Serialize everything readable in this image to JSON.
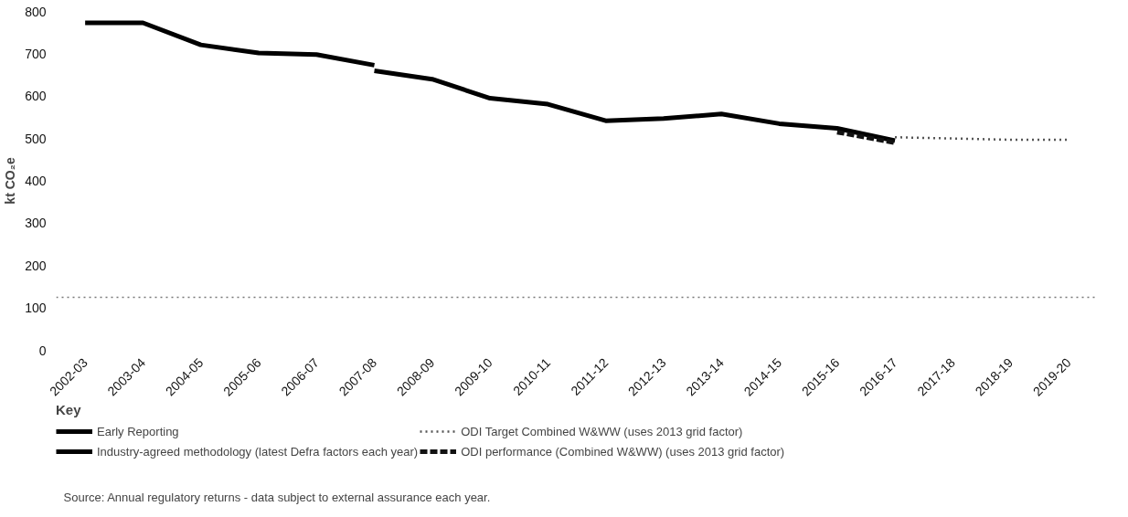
{
  "chart_data": {
    "type": "line",
    "ylabel": "kt CO₂e",
    "legend_title": "Key",
    "categories": [
      "2002-03",
      "2003-04",
      "2004-05",
      "2005-06",
      "2006-07",
      "2007-08",
      "2008-09",
      "2009-10",
      "2010-11",
      "2011-12",
      "2012-13",
      "2013-14",
      "2014-15",
      "2015-16",
      "2016-17",
      "2017-18",
      "2018-19",
      "2019-20"
    ],
    "series": [
      {
        "name": "Early Reporting",
        "color": "#000000",
        "line_style": "solid",
        "values": [
          773,
          773,
          721,
          702,
          698,
          673,
          null,
          null,
          null,
          null,
          null,
          null,
          null,
          null,
          null,
          null,
          null,
          null
        ]
      },
      {
        "name": "Industry-agreed methodology (latest Defra factors each year)",
        "color": "#000000",
        "line_style": "solid",
        "values": [
          null,
          null,
          null,
          null,
          null,
          660,
          640,
          595,
          581,
          542,
          547,
          558,
          535,
          524,
          495,
          null,
          null,
          null
        ]
      },
      {
        "name": "ODI Target Combined W&WW (uses 2013 grid factor)",
        "color": "#555555",
        "line_style": "dotted",
        "values": [
          null,
          null,
          null,
          null,
          null,
          null,
          null,
          null,
          null,
          null,
          null,
          null,
          null,
          null,
          503,
          500,
          497,
          497
        ]
      },
      {
        "name": "ODI performance (Combined W&WW) (uses 2013 grid factor)",
        "color": "#111111",
        "line_style": "dashed",
        "values": [
          null,
          null,
          null,
          null,
          null,
          null,
          null,
          null,
          null,
          null,
          null,
          null,
          null,
          515,
          490,
          null,
          null,
          null
        ]
      }
    ],
    "ylim": [
      0,
      800
    ],
    "yticks": [
      0,
      100,
      200,
      300,
      400,
      500,
      600,
      700,
      800
    ],
    "ref_lines": [
      {
        "axis": "y",
        "value": 125,
        "color": "#777777",
        "line_style": "dotted"
      }
    ],
    "legend": "bottom",
    "marker": "none",
    "annotations": [
      "Source: Annual regulatory returns - data subject to external assurance each year."
    ]
  }
}
